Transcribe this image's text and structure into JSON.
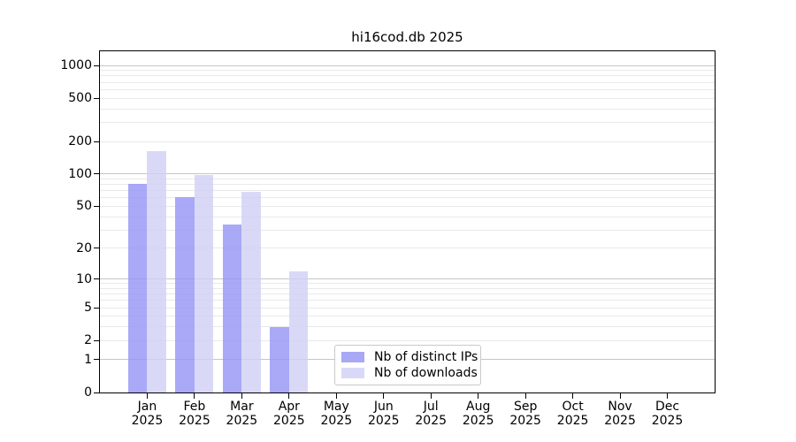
{
  "chart_data": {
    "type": "bar",
    "title": "hi16cod.db 2025",
    "categories": [
      "Jan",
      "Feb",
      "Mar",
      "Apr",
      "May",
      "Jun",
      "Jul",
      "Aug",
      "Sep",
      "Oct",
      "Nov",
      "Dec"
    ],
    "category_year": "2025",
    "series": [
      {
        "name": "Nb of distinct IPs",
        "color": "#a8a8f5",
        "fill": "rgba(148,148,245,0.8)",
        "values": [
          81,
          61,
          34,
          3,
          0,
          0,
          0,
          0,
          0,
          0,
          0,
          0
        ]
      },
      {
        "name": "Nb of downloads",
        "color": "#d9d9f7",
        "fill": "rgba(208,208,245,0.8)",
        "values": [
          163,
          98,
          68,
          12,
          0,
          0,
          0,
          0,
          0,
          0,
          0,
          0
        ]
      }
    ],
    "y_ticks": [
      0,
      1,
      2,
      5,
      10,
      20,
      50,
      100,
      200,
      500,
      1000
    ],
    "y_scale": "log10(value+1)",
    "y_max": 1350,
    "ylim": [
      0,
      1350
    ],
    "grid": {
      "major_values": [
        1,
        10,
        100,
        1000
      ],
      "major_color": "#c6c6c6",
      "minor_color": "#e9e9e9"
    },
    "legend_position": "lower center",
    "axis_color": "#000000",
    "background_color": "#ffffff"
  }
}
